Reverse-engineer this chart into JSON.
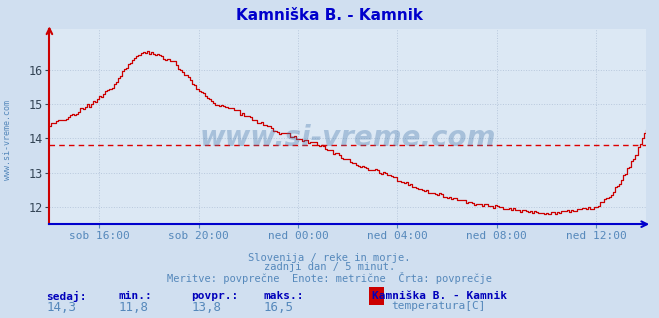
{
  "title": "Kamniška B. - Kamnik",
  "title_color": "#0000cc",
  "bg_color": "#d0dff0",
  "plot_bg_color": "#dce8f4",
  "grid_color": "#b8c8dc",
  "line_color": "#cc0000",
  "avg_line_color": "#dd0000",
  "avg_value": 13.8,
  "xlim": [
    0,
    288
  ],
  "ylim": [
    11.5,
    17.2
  ],
  "yticks": [
    12,
    13,
    14,
    15,
    16
  ],
  "xtick_labels": [
    "sob 16:00",
    "sob 20:00",
    "ned 00:00",
    "ned 04:00",
    "ned 08:00",
    "ned 12:00"
  ],
  "xtick_positions": [
    24,
    72,
    120,
    168,
    216,
    264
  ],
  "footer_lines": [
    "Slovenija / reke in morje.",
    "zadnji dan / 5 minut.",
    "Meritve: povprečne  Enote: metrične  Črta: povprečje"
  ],
  "footer_color": "#5588bb",
  "stats_labels": [
    "sedaj:",
    "min.:",
    "povpr.:",
    "maks.:"
  ],
  "stats_values": [
    "14,3",
    "11,8",
    "13,8",
    "16,5"
  ],
  "stats_label_color": "#0000bb",
  "stats_value_color": "#5588bb",
  "legend_title": "Kamniška B. - Kamnik",
  "legend_series": "temperatura[C]",
  "legend_color": "#cc0000",
  "watermark": "www.si-vreme.com",
  "watermark_color": "#4477aa",
  "watermark_alpha": 0.35,
  "sidebar_text": "www.si-vreme.com",
  "sidebar_color": "#5588bb",
  "keypoints_x": [
    0,
    4,
    8,
    12,
    16,
    20,
    24,
    30,
    36,
    40,
    44,
    48,
    54,
    60,
    66,
    72,
    80,
    90,
    100,
    110,
    120,
    130,
    140,
    150,
    160,
    168,
    180,
    192,
    204,
    216,
    228,
    240,
    252,
    264,
    270,
    276,
    282,
    286,
    288
  ],
  "keypoints_y": [
    14.4,
    14.5,
    14.6,
    14.7,
    14.9,
    15.0,
    15.2,
    15.5,
    16.0,
    16.3,
    16.5,
    16.5,
    16.4,
    16.2,
    15.8,
    15.4,
    15.0,
    14.8,
    14.5,
    14.2,
    14.0,
    13.8,
    13.5,
    13.2,
    13.0,
    12.8,
    12.5,
    12.3,
    12.1,
    12.0,
    11.9,
    11.8,
    11.9,
    12.0,
    12.3,
    12.8,
    13.4,
    14.0,
    14.3
  ]
}
